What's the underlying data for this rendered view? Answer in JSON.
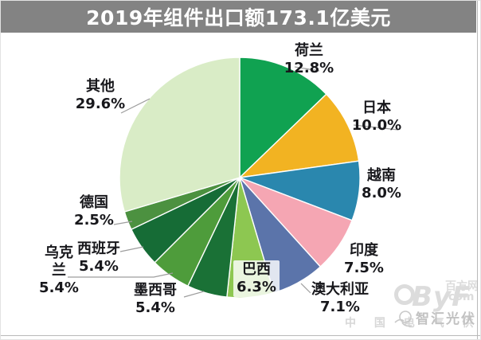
{
  "title": "2019年组件出口额173.1亿美元",
  "chart_data": {
    "type": "pie",
    "title": "2019年组件出口额173.1亿美元",
    "unit": "percent",
    "start_angle_deg": 0,
    "direction": "clockwise",
    "slices": [
      {
        "label": "荷兰",
        "value": 12.8,
        "color": "#10A251"
      },
      {
        "label": "日本",
        "value": 10.0,
        "color": "#F2B322"
      },
      {
        "label": "越南",
        "value": 8.0,
        "color": "#2A87AE"
      },
      {
        "label": "印度",
        "value": 7.5,
        "color": "#F5A6B3"
      },
      {
        "label": "澳大利亚",
        "value": 7.1,
        "color": "#5B74AA"
      },
      {
        "label": "巴西",
        "value": 6.3,
        "color": "#8DC751"
      },
      {
        "label": "墨西哥",
        "value": 5.4,
        "color": "#1A7136"
      },
      {
        "label": "乌克兰",
        "value": 5.4,
        "color": "#4E9C3B"
      },
      {
        "label": "西班牙",
        "value": 5.4,
        "color": "#166C36"
      },
      {
        "label": "德国",
        "value": 2.5,
        "color": "#4C9140"
      },
      {
        "label": "其他",
        "value": 29.6,
        "color": "#D9ECC6"
      }
    ],
    "legend_position": "none",
    "labels_on_chart": true
  },
  "watermarks": {
    "byf_logo_text": "ByF",
    "byf_site": "百方网",
    "byf_com": "com",
    "byf_slogan": "中 国 电 气 供 应 商",
    "zhihui_logo_text": "智汇光伏"
  },
  "style": {
    "title_bar_color": "#838383",
    "title_text_color": "#ffffff",
    "label_text_color": "#18181c",
    "leader_line_color": "#9d9d9d",
    "slice_border_color": "#ffffff"
  }
}
